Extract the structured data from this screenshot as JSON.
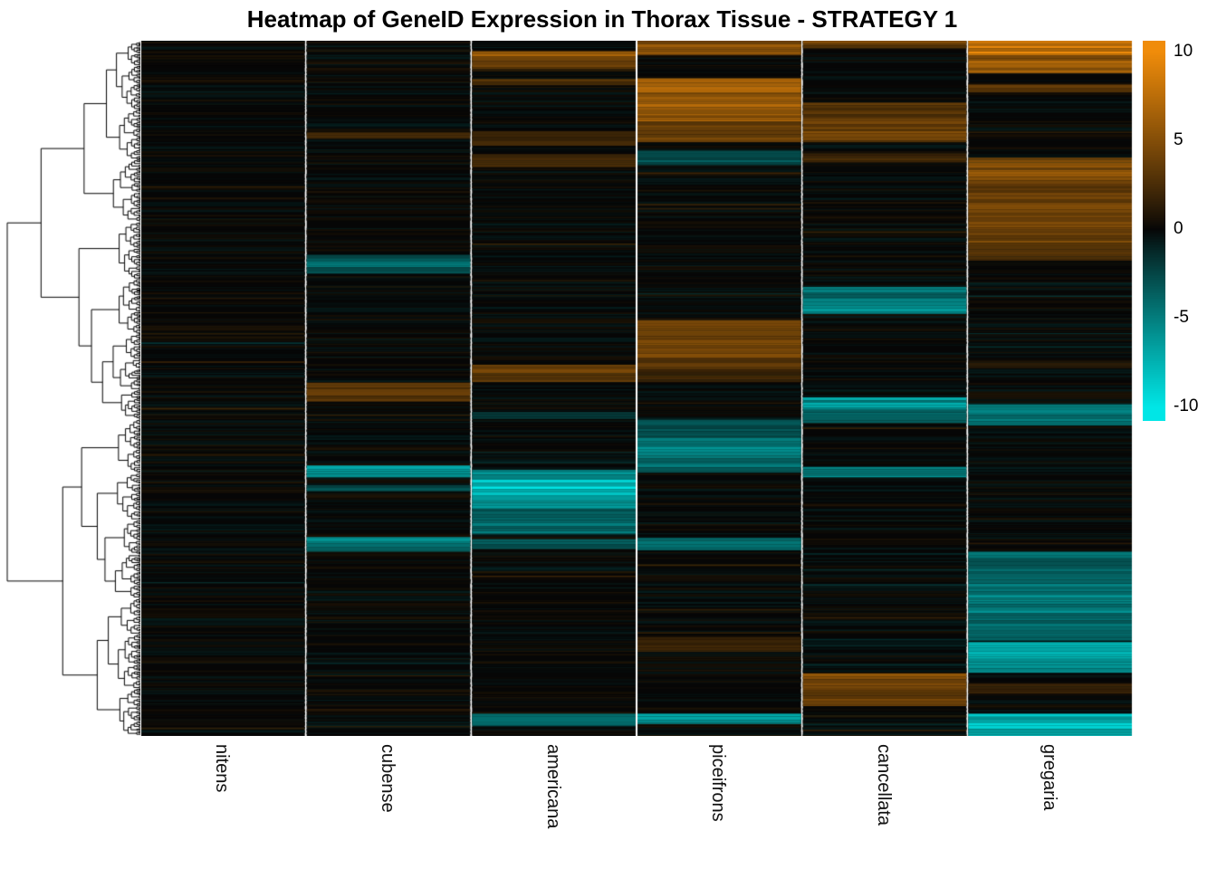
{
  "title": "Heatmap of GeneID Expression in Thorax Tissue - STRATEGY 1",
  "legend": {
    "ticks": [
      10,
      5,
      0,
      -5,
      -10
    ],
    "vmax": 10.6,
    "vmin": -10.8,
    "max_color": "#F08C0A",
    "zero_color": "#060606",
    "min_color": "#00E6E6"
  },
  "chart_data": {
    "type": "heatmap",
    "title": "Heatmap of GeneID Expression in Thorax Tissue - STRATEGY 1",
    "columns": [
      "nitens",
      "cubense",
      "americana",
      "piceifrons",
      "cancellata",
      "gregaria"
    ],
    "row_labels_visible": false,
    "row_dendrogram": true,
    "value_range": [
      -10,
      10
    ],
    "baseline_value": 0,
    "colormap": {
      "negative": "#00E6E6",
      "zero": "#060606",
      "positive": "#F08C0A"
    },
    "bands": {
      "nitens": [],
      "cubense": [
        [
          0.132,
          0.141,
          2
        ],
        [
          0.308,
          0.317,
          -3
        ],
        [
          0.317,
          0.326,
          -5
        ],
        [
          0.326,
          0.335,
          -3
        ],
        [
          0.492,
          0.501,
          3
        ],
        [
          0.501,
          0.511,
          4
        ],
        [
          0.511,
          0.519,
          3
        ],
        [
          0.611,
          0.619,
          -8
        ],
        [
          0.619,
          0.628,
          -6
        ],
        [
          0.639,
          0.648,
          -3
        ],
        [
          0.714,
          0.723,
          -6
        ],
        [
          0.723,
          0.735,
          -4
        ]
      ],
      "americana": [
        [
          0.015,
          0.026,
          6
        ],
        [
          0.026,
          0.041,
          4
        ],
        [
          0.055,
          0.064,
          3
        ],
        [
          0.13,
          0.151,
          2
        ],
        [
          0.163,
          0.182,
          2
        ],
        [
          0.466,
          0.478,
          4
        ],
        [
          0.478,
          0.491,
          3
        ],
        [
          0.534,
          0.544,
          -2
        ],
        [
          0.617,
          0.631,
          -5
        ],
        [
          0.631,
          0.656,
          -8
        ],
        [
          0.656,
          0.673,
          -6
        ],
        [
          0.673,
          0.71,
          -4
        ],
        [
          0.717,
          0.731,
          -3
        ],
        [
          0.968,
          0.986,
          -4
        ]
      ],
      "piceifrons": [
        [
          0.0,
          0.021,
          5
        ],
        [
          0.054,
          0.076,
          7
        ],
        [
          0.076,
          0.116,
          6
        ],
        [
          0.116,
          0.146,
          4
        ],
        [
          0.158,
          0.179,
          -3
        ],
        [
          0.402,
          0.431,
          4
        ],
        [
          0.431,
          0.456,
          5
        ],
        [
          0.456,
          0.473,
          3
        ],
        [
          0.473,
          0.491,
          2
        ],
        [
          0.545,
          0.571,
          -3
        ],
        [
          0.571,
          0.601,
          -5
        ],
        [
          0.601,
          0.621,
          -4
        ],
        [
          0.715,
          0.733,
          -4
        ],
        [
          0.858,
          0.879,
          2
        ],
        [
          0.968,
          0.983,
          -6
        ]
      ],
      "cancellata": [
        [
          0.0,
          0.011,
          4
        ],
        [
          0.089,
          0.111,
          3
        ],
        [
          0.111,
          0.146,
          4
        ],
        [
          0.162,
          0.175,
          2
        ],
        [
          0.354,
          0.371,
          -4
        ],
        [
          0.371,
          0.393,
          -5
        ],
        [
          0.513,
          0.531,
          -6
        ],
        [
          0.531,
          0.55,
          -4
        ],
        [
          0.613,
          0.628,
          -5
        ],
        [
          0.91,
          0.931,
          5
        ],
        [
          0.931,
          0.957,
          4
        ]
      ],
      "gregaria": [
        [
          0.0,
          0.021,
          8
        ],
        [
          0.021,
          0.047,
          6
        ],
        [
          0.063,
          0.074,
          3
        ],
        [
          0.168,
          0.201,
          5
        ],
        [
          0.201,
          0.251,
          4
        ],
        [
          0.251,
          0.291,
          4
        ],
        [
          0.291,
          0.316,
          3
        ],
        [
          0.46,
          0.471,
          1
        ],
        [
          0.523,
          0.553,
          -5
        ],
        [
          0.735,
          0.781,
          -4
        ],
        [
          0.781,
          0.831,
          -5
        ],
        [
          0.831,
          0.863,
          -4
        ],
        [
          0.865,
          0.886,
          -7
        ],
        [
          0.886,
          0.909,
          -6
        ],
        [
          0.925,
          0.939,
          2
        ],
        [
          0.968,
          1.0,
          -8
        ]
      ]
    }
  }
}
